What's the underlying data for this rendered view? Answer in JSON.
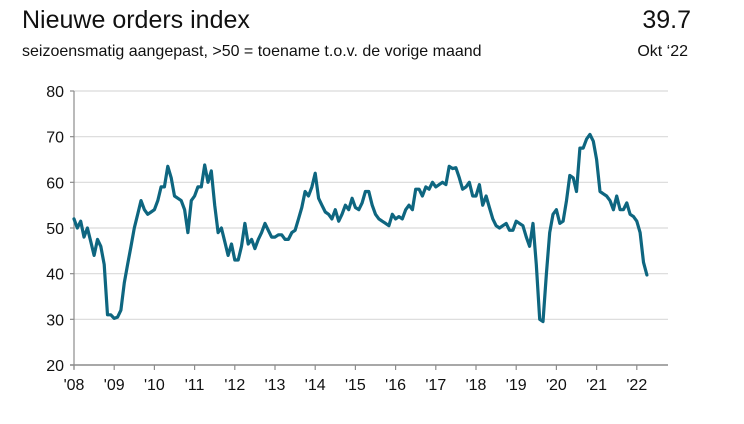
{
  "header": {
    "title": "Nieuwe orders index",
    "subtitle": "seizoensmatig aangepast, >50 = toename t.o.v. de vorige maand",
    "latest_value": "39.7",
    "latest_period": "Okt ‘22"
  },
  "colors": {
    "line": "#0e6680",
    "grid": "#d9d9d9",
    "axis": "#8c8c8c"
  },
  "chart_data": {
    "type": "line",
    "title": "Nieuwe orders index",
    "subtitle": "seizoensmatig aangepast, >50 = toename t.o.v. de vorige maand",
    "xlabel": "",
    "ylabel": "",
    "ylim": [
      20,
      80
    ],
    "yticks": [
      "20",
      "30",
      "40",
      "50",
      "60",
      "70",
      "80"
    ],
    "xticks": [
      "'08",
      "'09",
      "'10",
      "'11",
      "'12",
      "'13",
      "'14",
      "'15",
      "'16",
      "'17",
      "'18",
      "'19",
      "'20",
      "'21",
      "'22"
    ],
    "x_start": "2008-01",
    "frequency": "monthly",
    "grid": true,
    "series": [
      {
        "name": "Nieuwe orders index",
        "values": [
          52,
          50,
          51.5,
          48,
          50,
          47,
          44,
          47.5,
          46,
          42,
          31,
          31,
          30.2,
          30.5,
          32,
          38,
          42,
          46,
          50,
          53,
          56,
          54,
          53,
          53.5,
          54,
          56,
          59,
          59,
          63.5,
          61,
          57,
          56.5,
          56,
          54,
          49,
          56,
          57,
          59,
          59,
          63.8,
          60,
          62.5,
          55,
          49,
          50,
          47,
          44,
          46.5,
          43,
          43,
          46,
          51,
          46.5,
          47.5,
          45.5,
          47.5,
          49,
          51,
          49.5,
          48,
          48,
          48.5,
          48.5,
          47.5,
          47.5,
          49,
          49.5,
          52,
          54.5,
          58,
          57,
          59,
          62,
          56.5,
          55,
          53.5,
          53,
          52,
          54,
          51.5,
          53,
          55,
          54,
          56.5,
          54.5,
          54,
          55.5,
          58,
          58,
          55,
          53,
          52,
          51.5,
          51,
          50.5,
          53,
          52,
          52.5,
          52,
          54,
          55,
          54,
          58.5,
          58.5,
          57,
          59,
          58.5,
          60,
          59,
          59.5,
          60,
          59.5,
          63.5,
          63,
          63.2,
          61,
          58.5,
          59,
          60,
          57,
          57,
          59.5,
          55,
          57,
          54.5,
          52,
          50.5,
          50,
          50.5,
          51,
          49.5,
          49.5,
          51.5,
          51,
          50.5,
          48,
          46,
          51,
          42,
          30,
          29.5,
          40,
          49,
          53,
          54,
          51,
          51.5,
          56,
          61.5,
          61,
          58,
          67.5,
          67.5,
          69.5,
          70.5,
          69,
          65,
          58,
          57.5,
          57,
          56,
          54,
          57,
          54,
          54,
          55.5,
          53,
          52.5,
          51.5,
          49,
          42.5,
          39.7
        ]
      }
    ]
  }
}
